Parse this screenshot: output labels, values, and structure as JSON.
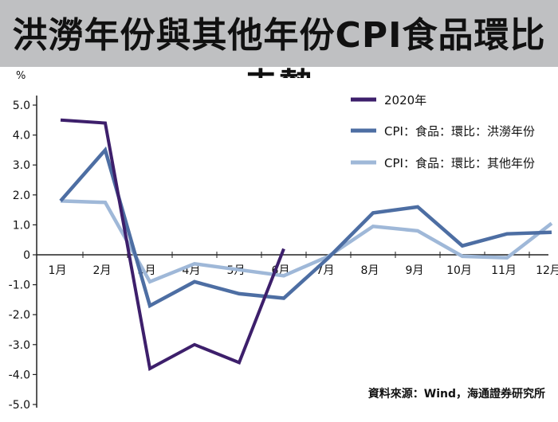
{
  "title": "洪澇年份與其他年份CPI食品環比走勢",
  "source": "資料來源：Wind，海通證券研究所",
  "chart_data": {
    "type": "line",
    "ylabel": "%",
    "ylim": [
      -5,
      5
    ],
    "yticks": [
      "5.0",
      "4.0",
      "3.0",
      "2.0",
      "1.0",
      "0",
      "-1.0",
      "-2.0",
      "-3.0",
      "-4.0",
      "-5.0"
    ],
    "categories": [
      "1月",
      "2月",
      "3月",
      "4月",
      "5月",
      "6月",
      "7月",
      "8月",
      "9月",
      "10月",
      "11月",
      "12月"
    ],
    "grid": false,
    "legend_position": "top-right",
    "series": [
      {
        "name": "2020年",
        "color": "#3d1f6b",
        "values": [
          4.5,
          4.4,
          -3.8,
          -3.0,
          -3.6,
          0.2,
          null,
          null,
          null,
          null,
          null,
          null
        ]
      },
      {
        "name": "CPI：食品：環比：洪澇年份",
        "color": "#4d6ea3",
        "values": [
          1.8,
          3.5,
          -1.7,
          -0.9,
          -1.3,
          -1.45,
          -0.1,
          1.4,
          1.6,
          0.3,
          0.7,
          0.75
        ]
      },
      {
        "name": "CPI：食品：環比：其他年份",
        "color": "#9fb8d8",
        "values": [
          1.8,
          1.75,
          -0.9,
          -0.3,
          -0.5,
          -0.7,
          -0.05,
          0.95,
          0.8,
          -0.05,
          -0.1,
          1.05
        ]
      }
    ]
  }
}
